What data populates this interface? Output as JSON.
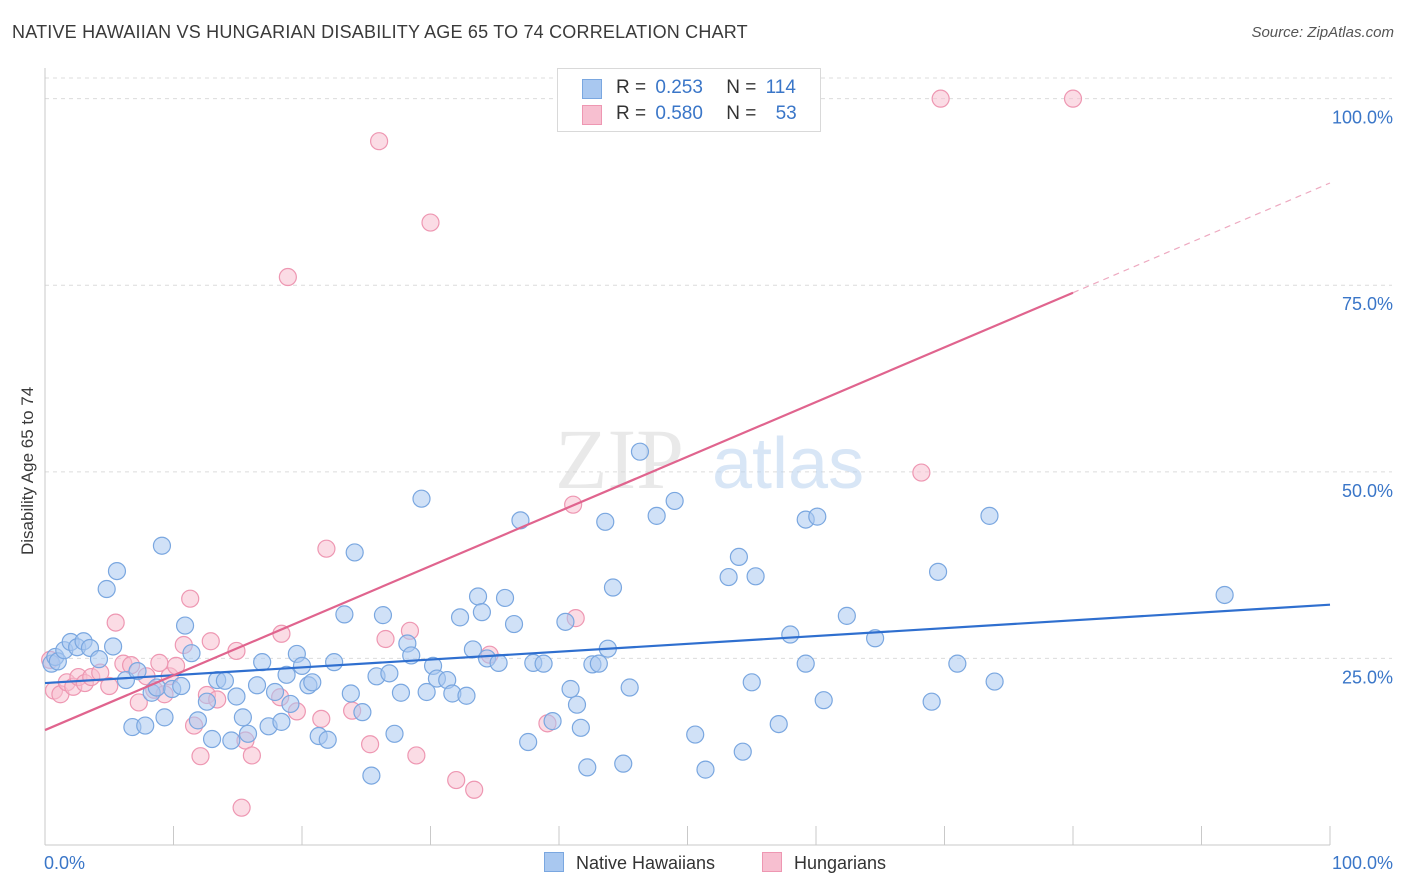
{
  "title": "NATIVE HAWAIIAN VS HUNGARIAN DISABILITY AGE 65 TO 74 CORRELATION CHART",
  "source": "Source: ZipAtlas.com",
  "watermark": {
    "part1": "ZIP",
    "part2": "atlas"
  },
  "stats": [
    {
      "r_label": "R =",
      "r_value": "0.253",
      "n_label": "N =",
      "n_value": "114"
    },
    {
      "r_label": "R =",
      "r_value": "0.580",
      "n_label": "N =",
      "n_value": "53"
    }
  ],
  "legend": [
    "Native Hawaiians",
    "Hungarians"
  ],
  "colors": {
    "blue_fill": "#a9c8f0",
    "blue_stroke": "#7aa7e0",
    "blue_line": "#2f6fcf",
    "pink_fill": "#f7bfd0",
    "pink_stroke": "#ee97b2",
    "pink_line": "#e0648e",
    "axis_text": "#3a76c8",
    "grid": "#dcdcdc"
  },
  "chart_data": {
    "type": "scatter",
    "title": "NATIVE HAWAIIAN VS HUNGARIAN DISABILITY AGE 65 TO 74 CORRELATION CHART",
    "xlabel": "",
    "ylabel": "Disability Age 65 to 74",
    "xlim": [
      0,
      100
    ],
    "ylim": [
      0,
      102.5
    ],
    "x_tick_labels": [
      "0.0%",
      "100.0%"
    ],
    "y_ticks": [
      25,
      50,
      75,
      100
    ],
    "y_tick_labels": [
      "25.0%",
      "50.0%",
      "75.0%",
      "100.0%"
    ],
    "series": [
      {
        "name": "Native Hawaiians",
        "r": 0.253,
        "n": 114,
        "trend": {
          "x": [
            0,
            100
          ],
          "y": [
            21.7,
            32.2
          ]
        },
        "points": [
          [
            0.5,
            24.3
          ],
          [
            0.8,
            25.2
          ],
          [
            1.0,
            24.6
          ],
          [
            1.5,
            26.1
          ],
          [
            2.0,
            27.2
          ],
          [
            2.5,
            26.5
          ],
          [
            3.0,
            27.3
          ],
          [
            3.5,
            26.4
          ],
          [
            4.2,
            24.9
          ],
          [
            4.8,
            34.3
          ],
          [
            5.3,
            26.6
          ],
          [
            5.6,
            36.7
          ],
          [
            6.3,
            22.1
          ],
          [
            6.8,
            15.8
          ],
          [
            7.2,
            23.3
          ],
          [
            7.8,
            16.0
          ],
          [
            8.3,
            20.4
          ],
          [
            8.7,
            21.1
          ],
          [
            9.1,
            40.1
          ],
          [
            9.3,
            17.1
          ],
          [
            9.9,
            20.9
          ],
          [
            10.6,
            21.3
          ],
          [
            10.9,
            29.4
          ],
          [
            11.4,
            25.7
          ],
          [
            11.9,
            16.7
          ],
          [
            12.6,
            19.2
          ],
          [
            13.0,
            14.2
          ],
          [
            13.4,
            22.1
          ],
          [
            14.0,
            22.0
          ],
          [
            14.5,
            14.0
          ],
          [
            14.9,
            19.9
          ],
          [
            15.4,
            17.1
          ],
          [
            15.8,
            14.9
          ],
          [
            16.5,
            21.4
          ],
          [
            16.9,
            24.5
          ],
          [
            17.4,
            15.9
          ],
          [
            17.9,
            20.5
          ],
          [
            18.4,
            16.5
          ],
          [
            18.8,
            22.8
          ],
          [
            19.1,
            18.9
          ],
          [
            19.6,
            25.6
          ],
          [
            20.0,
            24.0
          ],
          [
            20.5,
            21.4
          ],
          [
            20.8,
            21.8
          ],
          [
            21.3,
            14.6
          ],
          [
            22.0,
            14.1
          ],
          [
            22.5,
            24.5
          ],
          [
            23.3,
            30.9
          ],
          [
            23.8,
            20.3
          ],
          [
            24.1,
            39.2
          ],
          [
            24.7,
            17.8
          ],
          [
            25.4,
            9.3
          ],
          [
            25.8,
            22.6
          ],
          [
            26.3,
            30.8
          ],
          [
            26.8,
            23.0
          ],
          [
            27.2,
            14.9
          ],
          [
            27.7,
            20.4
          ],
          [
            28.2,
            27.0
          ],
          [
            28.5,
            25.4
          ],
          [
            29.3,
            46.4
          ],
          [
            29.7,
            20.5
          ],
          [
            30.2,
            24.0
          ],
          [
            30.5,
            22.3
          ],
          [
            31.3,
            22.1
          ],
          [
            31.7,
            20.3
          ],
          [
            32.3,
            30.5
          ],
          [
            32.8,
            20.0
          ],
          [
            33.3,
            26.2
          ],
          [
            33.7,
            33.3
          ],
          [
            34.0,
            31.2
          ],
          [
            34.4,
            25.0
          ],
          [
            35.3,
            24.4
          ],
          [
            35.8,
            33.1
          ],
          [
            36.5,
            29.6
          ],
          [
            37.0,
            43.5
          ],
          [
            37.6,
            13.8
          ],
          [
            38.0,
            24.4
          ],
          [
            38.8,
            24.3
          ],
          [
            39.5,
            16.6
          ],
          [
            40.5,
            29.9
          ],
          [
            40.9,
            20.9
          ],
          [
            41.4,
            18.8
          ],
          [
            41.7,
            15.7
          ],
          [
            42.2,
            10.4
          ],
          [
            42.6,
            24.2
          ],
          [
            43.1,
            24.3
          ],
          [
            43.6,
            43.3
          ],
          [
            43.8,
            26.3
          ],
          [
            44.2,
            34.5
          ],
          [
            45.0,
            10.9
          ],
          [
            45.5,
            21.1
          ],
          [
            46.3,
            52.7
          ],
          [
            47.6,
            44.1
          ],
          [
            49.0,
            46.1
          ],
          [
            50.6,
            14.8
          ],
          [
            51.4,
            10.1
          ],
          [
            53.2,
            35.9
          ],
          [
            54.0,
            38.6
          ],
          [
            54.3,
            12.5
          ],
          [
            55.0,
            21.8
          ],
          [
            55.3,
            36.0
          ],
          [
            57.1,
            16.2
          ],
          [
            58.0,
            28.2
          ],
          [
            59.2,
            24.3
          ],
          [
            59.2,
            43.6
          ],
          [
            60.1,
            44.0
          ],
          [
            60.6,
            19.4
          ],
          [
            62.4,
            30.7
          ],
          [
            64.6,
            27.7
          ],
          [
            69.0,
            19.2
          ],
          [
            69.5,
            36.6
          ],
          [
            71.0,
            24.3
          ],
          [
            73.5,
            44.1
          ],
          [
            73.9,
            21.9
          ],
          [
            91.8,
            33.5
          ]
        ]
      },
      {
        "name": "Hungarians",
        "r": 0.58,
        "n": 53,
        "trend": {
          "x": [
            0,
            80
          ],
          "y": [
            15.4,
            74.0
          ]
        },
        "trend_extrapolated": {
          "x": [
            80,
            100
          ],
          "y": [
            74.0,
            88.7
          ]
        },
        "points": [
          [
            0.4,
            24.8
          ],
          [
            0.7,
            20.7
          ],
          [
            1.2,
            20.2
          ],
          [
            1.7,
            21.8
          ],
          [
            2.2,
            21.2
          ],
          [
            2.6,
            22.5
          ],
          [
            3.1,
            21.7
          ],
          [
            3.6,
            22.5
          ],
          [
            4.3,
            23.1
          ],
          [
            5.0,
            21.3
          ],
          [
            5.5,
            29.8
          ],
          [
            6.1,
            24.3
          ],
          [
            6.7,
            24.1
          ],
          [
            7.3,
            19.1
          ],
          [
            7.9,
            22.6
          ],
          [
            8.5,
            20.8
          ],
          [
            8.9,
            24.4
          ],
          [
            9.3,
            20.2
          ],
          [
            9.7,
            22.6
          ],
          [
            10.2,
            24.0
          ],
          [
            10.8,
            26.8
          ],
          [
            11.3,
            33.0
          ],
          [
            11.6,
            16.0
          ],
          [
            12.1,
            11.9
          ],
          [
            12.6,
            20.1
          ],
          [
            12.9,
            27.3
          ],
          [
            13.4,
            19.5
          ],
          [
            14.9,
            26.0
          ],
          [
            15.3,
            5.0
          ],
          [
            15.6,
            14.0
          ],
          [
            16.1,
            12.0
          ],
          [
            18.3,
            19.8
          ],
          [
            18.4,
            28.3
          ],
          [
            18.9,
            76.1
          ],
          [
            19.6,
            17.9
          ],
          [
            21.5,
            16.9
          ],
          [
            21.9,
            39.7
          ],
          [
            23.9,
            18.0
          ],
          [
            25.3,
            13.5
          ],
          [
            26.0,
            94.3
          ],
          [
            26.5,
            27.6
          ],
          [
            28.4,
            28.7
          ],
          [
            28.9,
            12.0
          ],
          [
            30.0,
            83.4
          ],
          [
            32.0,
            8.7
          ],
          [
            33.4,
            7.4
          ],
          [
            34.6,
            25.5
          ],
          [
            39.1,
            16.3
          ],
          [
            41.1,
            45.6
          ],
          [
            41.3,
            30.4
          ],
          [
            68.2,
            49.9
          ],
          [
            69.7,
            100.0
          ],
          [
            80.0,
            100.0
          ]
        ]
      }
    ]
  }
}
